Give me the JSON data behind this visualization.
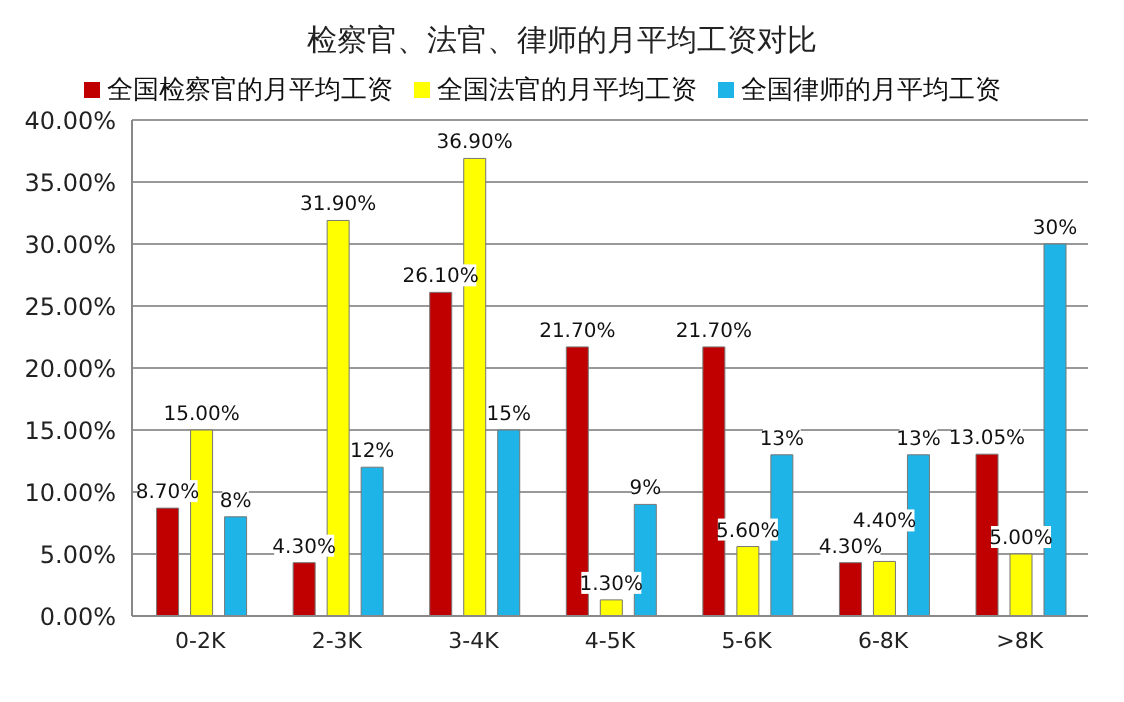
{
  "chart_data": {
    "type": "bar",
    "title": "检察官、法官、律师的月平均工资对比",
    "categories": [
      "0-2K",
      "2-3K",
      "3-4K",
      "4-5K",
      "5-6K",
      "6-8K",
      ">8K"
    ],
    "series": [
      {
        "name": "全国检察官的月平均工资",
        "color": "#c00000",
        "values": [
          8.7,
          4.3,
          26.1,
          21.7,
          21.7,
          4.3,
          13.05
        ],
        "value_labels": [
          "8.70%",
          "4.30%",
          "26.10%",
          "21.70%",
          "21.70%",
          "4.30%",
          "13.05%"
        ]
      },
      {
        "name": "全国法官的月平均工资",
        "color": "#ffff00",
        "values": [
          15,
          31.9,
          36.9,
          1.3,
          5.6,
          4.4,
          5
        ],
        "value_labels": [
          "15.00%",
          "31.90%",
          "36.90%",
          "1.30%",
          "5.60%",
          "4.40%",
          "5.00%"
        ]
      },
      {
        "name": "全国律师的月平均工资",
        "color": "#1fb4e8",
        "values": [
          8,
          12,
          15,
          9,
          13,
          13,
          30
        ],
        "value_labels": [
          "8%",
          "12%",
          "15%",
          "9%",
          "13%",
          "13%",
          "30%"
        ]
      }
    ],
    "ylim": [
      0,
      40
    ],
    "yticks": [
      {
        "value": 0,
        "label": "0.00%"
      },
      {
        "value": 5,
        "label": "5.00%"
      },
      {
        "value": 10,
        "label": "10.00%"
      },
      {
        "value": 15,
        "label": "15.00%"
      },
      {
        "value": 20,
        "label": "20.00%"
      },
      {
        "value": 25,
        "label": "25.00%"
      },
      {
        "value": 30,
        "label": "30.00%"
      },
      {
        "value": 35,
        "label": "35.00%"
      },
      {
        "value": 40,
        "label": "40.00%"
      }
    ],
    "grid": "y",
    "legend": "top"
  }
}
